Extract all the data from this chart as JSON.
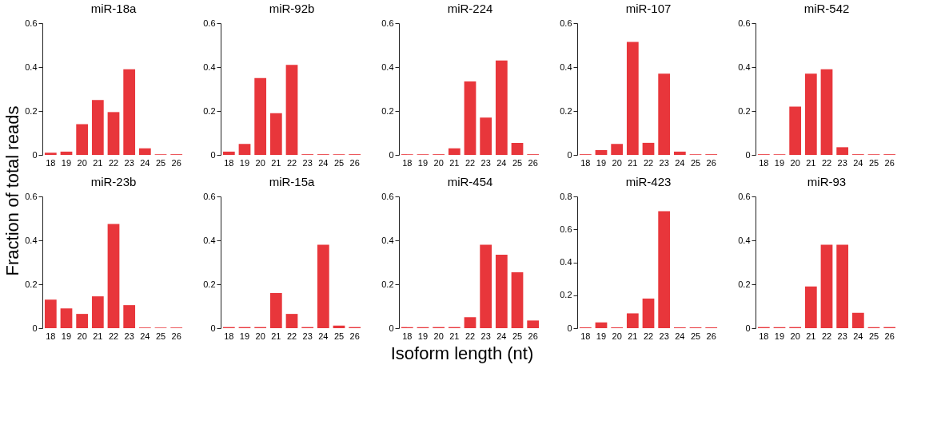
{
  "chart_data": [
    {
      "type": "bar",
      "title": "miR-18a",
      "ylabel": "Fraction of total reads",
      "categories": [
        "18",
        "19",
        "20",
        "21",
        "22",
        "23",
        "24",
        "25",
        "26"
      ],
      "values": [
        0.01,
        0.015,
        0.14,
        0.25,
        0.195,
        0.39,
        0.03,
        0.003,
        0.003
      ],
      "color": "#e8363b",
      "ylim": [
        0,
        0.6
      ],
      "yticks": [
        0,
        0.2,
        0.4,
        0.6
      ]
    },
    {
      "type": "bar",
      "title": "miR-92b",
      "categories": [
        "18",
        "19",
        "20",
        "21",
        "22",
        "23",
        "24",
        "25",
        "26"
      ],
      "values": [
        0.015,
        0.05,
        0.35,
        0.19,
        0.41,
        0.003,
        0.003,
        0.003,
        0.003
      ],
      "color": "#e8363b",
      "ylim": [
        0,
        0.6
      ],
      "yticks": [
        0,
        0.2,
        0.4,
        0.6
      ]
    },
    {
      "type": "bar",
      "title": "miR-224",
      "categories": [
        "18",
        "19",
        "20",
        "21",
        "22",
        "23",
        "24",
        "25",
        "26"
      ],
      "values": [
        0.003,
        0.003,
        0.003,
        0.03,
        0.335,
        0.17,
        0.43,
        0.055,
        0.003
      ],
      "color": "#e8363b",
      "ylim": [
        0,
        0.6
      ],
      "yticks": [
        0,
        0.2,
        0.4,
        0.6
      ]
    },
    {
      "type": "bar",
      "title": "miR-107",
      "categories": [
        "18",
        "19",
        "20",
        "21",
        "22",
        "23",
        "24",
        "25",
        "26"
      ],
      "values": [
        0.003,
        0.022,
        0.05,
        0.515,
        0.055,
        0.37,
        0.015,
        0.003,
        0.003
      ],
      "color": "#e8363b",
      "ylim": [
        0,
        0.6
      ],
      "yticks": [
        0,
        0.2,
        0.4,
        0.6
      ]
    },
    {
      "type": "bar",
      "title": "miR-542",
      "categories": [
        "18",
        "19",
        "20",
        "21",
        "22",
        "23",
        "24",
        "25",
        "26"
      ],
      "values": [
        0.003,
        0.003,
        0.22,
        0.37,
        0.39,
        0.035,
        0.003,
        0.003,
        0.003
      ],
      "color": "#e8363b",
      "ylim": [
        0,
        0.6
      ],
      "yticks": [
        0,
        0.2,
        0.4,
        0.6
      ]
    },
    {
      "type": "bar",
      "title": "miR-23b",
      "categories": [
        "18",
        "19",
        "20",
        "21",
        "22",
        "23",
        "24",
        "25",
        "26"
      ],
      "values": [
        0.13,
        0.09,
        0.065,
        0.145,
        0.475,
        0.105,
        0.003,
        0.003,
        0.003
      ],
      "color": "#e8363b",
      "ylim": [
        0,
        0.6
      ],
      "yticks": [
        0,
        0.2,
        0.4,
        0.6
      ]
    },
    {
      "type": "bar",
      "title": "miR-15a",
      "categories": [
        "18",
        "19",
        "20",
        "21",
        "22",
        "23",
        "24",
        "25",
        "26"
      ],
      "values": [
        0.005,
        0.005,
        0.005,
        0.16,
        0.065,
        0.005,
        0.38,
        0.012,
        0.005
      ],
      "color": "#e8363b",
      "ylim": [
        0,
        0.6
      ],
      "yticks": [
        0,
        0.2,
        0.4,
        0.6
      ]
    },
    {
      "type": "bar",
      "title": "miR-454",
      "xlabel": "Isoform length (nt)",
      "categories": [
        "18",
        "19",
        "20",
        "21",
        "22",
        "23",
        "24",
        "25",
        "26"
      ],
      "values": [
        0.005,
        0.005,
        0.005,
        0.005,
        0.05,
        0.38,
        0.335,
        0.255,
        0.035
      ],
      "color": "#e8363b",
      "ylim": [
        0,
        0.6
      ],
      "yticks": [
        0,
        0.2,
        0.4,
        0.6
      ]
    },
    {
      "type": "bar",
      "title": "miR-423",
      "categories": [
        "18",
        "19",
        "20",
        "21",
        "22",
        "23",
        "24",
        "25",
        "26"
      ],
      "values": [
        0.005,
        0.035,
        0.005,
        0.09,
        0.18,
        0.71,
        0.005,
        0.005,
        0.005
      ],
      "color": "#e8363b",
      "ylim": [
        0,
        0.8
      ],
      "yticks": [
        0,
        0.2,
        0.4,
        0.6,
        0.8
      ]
    },
    {
      "type": "bar",
      "title": "miR-93",
      "categories": [
        "18",
        "19",
        "20",
        "21",
        "22",
        "23",
        "24",
        "25",
        "26"
      ],
      "values": [
        0.005,
        0.005,
        0.005,
        0.19,
        0.38,
        0.38,
        0.07,
        0.005,
        0.005
      ],
      "color": "#e8363b",
      "ylim": [
        0,
        0.6
      ],
      "yticks": [
        0,
        0.2,
        0.4,
        0.6
      ]
    }
  ]
}
